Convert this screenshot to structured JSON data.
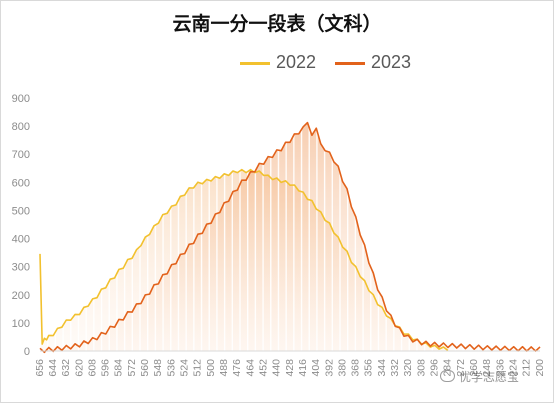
{
  "chart_data": {
    "type": "line",
    "title": "云南一分一段表（文科）",
    "xlabel": "",
    "ylabel": "",
    "x_ticks": [
      "656",
      "644",
      "632",
      "620",
      "608",
      "596",
      "584",
      "572",
      "560",
      "548",
      "536",
      "524",
      "512",
      "500",
      "488",
      "476",
      "464",
      "452",
      "440",
      "428",
      "416",
      "404",
      "392",
      "380",
      "368",
      "356",
      "344",
      "332",
      "320",
      "308",
      "296",
      "284",
      "272",
      "260",
      "248",
      "236",
      "224",
      "212",
      "200"
    ],
    "x_range": [
      656,
      200
    ],
    "y_ticks": [
      "0",
      "100",
      "200",
      "300",
      "400",
      "500",
      "600",
      "700",
      "800",
      "900"
    ],
    "ylim": [
      0,
      900
    ],
    "grid": false,
    "legend_position": "top-center",
    "series": [
      {
        "name": "2022",
        "color": "#F2C12E",
        "x": [
          656,
          654,
          652,
          650,
          648,
          644,
          640,
          636,
          632,
          628,
          624,
          620,
          616,
          612,
          608,
          604,
          600,
          596,
          592,
          588,
          584,
          580,
          576,
          572,
          568,
          564,
          560,
          556,
          552,
          548,
          544,
          540,
          536,
          532,
          528,
          524,
          520,
          516,
          512,
          508,
          504,
          500,
          496,
          492,
          488,
          484,
          480,
          476,
          472,
          468,
          464,
          460,
          456,
          452,
          448,
          444,
          440,
          436,
          432,
          428,
          424,
          420,
          416,
          412,
          408,
          404,
          400,
          396,
          392,
          388,
          384,
          380,
          376,
          372,
          368,
          364,
          360,
          356,
          352,
          348,
          344,
          340,
          336,
          332,
          328,
          324,
          320,
          316,
          312,
          308,
          304,
          300,
          296,
          292,
          288,
          284
        ],
        "values": [
          340,
          30,
          40,
          45,
          50,
          60,
          75,
          90,
          105,
          115,
          125,
          135,
          150,
          165,
          180,
          195,
          215,
          230,
          250,
          265,
          285,
          300,
          320,
          335,
          355,
          380,
          400,
          420,
          440,
          460,
          480,
          495,
          510,
          525,
          545,
          560,
          575,
          585,
          595,
          600,
          605,
          610,
          615,
          620,
          625,
          630,
          635,
          640,
          640,
          640,
          640,
          640,
          635,
          630,
          620,
          615,
          610,
          605,
          600,
          595,
          585,
          575,
          560,
          545,
          530,
          510,
          490,
          470,
          450,
          425,
          400,
          375,
          350,
          320,
          295,
          270,
          245,
          220,
          195,
          170,
          150,
          130,
          110,
          95,
          80,
          65,
          55,
          45,
          37,
          30,
          24,
          19,
          15,
          12,
          9,
          7
        ]
      },
      {
        "name": "2023",
        "color": "#E2621B",
        "x": [
          656,
          652,
          648,
          644,
          640,
          636,
          632,
          628,
          624,
          620,
          616,
          612,
          608,
          604,
          600,
          596,
          592,
          588,
          584,
          580,
          576,
          572,
          568,
          564,
          560,
          556,
          552,
          548,
          544,
          540,
          536,
          532,
          528,
          524,
          520,
          516,
          512,
          508,
          504,
          500,
          496,
          492,
          488,
          484,
          480,
          476,
          472,
          468,
          464,
          460,
          456,
          452,
          448,
          444,
          440,
          436,
          432,
          428,
          424,
          420,
          416,
          412,
          408,
          404,
          400,
          396,
          392,
          388,
          384,
          380,
          376,
          372,
          368,
          364,
          360,
          356,
          352,
          348,
          344,
          340,
          336,
          332,
          328,
          324,
          320,
          316,
          312,
          308,
          304,
          300,
          296,
          292,
          288,
          284,
          280,
          276,
          272,
          268,
          264,
          260,
          256,
          252,
          248,
          244,
          240,
          236,
          232,
          228,
          224,
          220,
          216,
          212,
          208,
          204,
          200
        ],
        "values": [
          2,
          3,
          5,
          6,
          8,
          10,
          12,
          15,
          18,
          22,
          28,
          34,
          40,
          48,
          58,
          68,
          80,
          92,
          105,
          118,
          132,
          146,
          160,
          176,
          192,
          210,
          228,
          246,
          264,
          282,
          300,
          318,
          336,
          354,
          372,
          390,
          408,
          426,
          444,
          462,
          480,
          500,
          520,
          540,
          560,
          580,
          600,
          615,
          630,
          645,
          660,
          672,
          684,
          696,
          708,
          720,
          735,
          750,
          765,
          780,
          790,
          820,
          760,
          800,
          730,
          720,
          700,
          680,
          650,
          610,
          570,
          520,
          470,
          420,
          370,
          320,
          270,
          225,
          185,
          150,
          120,
          95,
          75,
          60,
          48,
          40,
          34,
          30,
          27,
          25,
          23,
          22,
          21,
          20,
          19,
          18,
          17,
          16,
          15,
          14,
          13,
          12,
          11,
          11,
          10,
          10,
          9,
          9,
          8,
          8,
          8,
          7,
          7,
          7,
          7
        ]
      }
    ]
  },
  "watermark": {
    "text": "优学志愿宝",
    "icon": "chat-bubble-icon"
  }
}
